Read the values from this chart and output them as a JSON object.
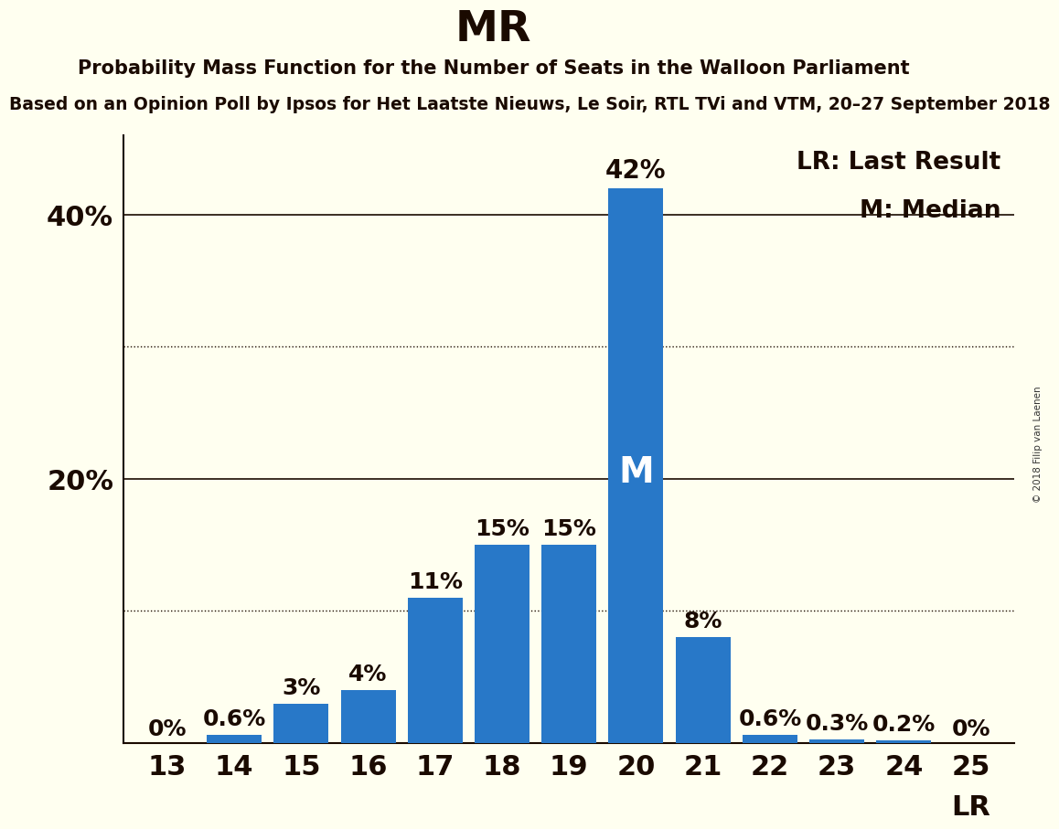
{
  "title": "MR",
  "subtitle": "Probability Mass Function for the Number of Seats in the Walloon Parliament",
  "subtitle2": "Based on an Opinion Poll by Ipsos for Het Laatste Nieuws, Le Soir, RTL TVi and VTM, 20–27 September 2018",
  "copyright": "© 2018 Filip van Laenen",
  "seats": [
    13,
    14,
    15,
    16,
    17,
    18,
    19,
    20,
    21,
    22,
    23,
    24,
    25
  ],
  "probabilities": [
    0.0,
    0.6,
    3.0,
    4.0,
    11.0,
    15.0,
    15.0,
    42.0,
    8.0,
    0.6,
    0.3,
    0.2,
    0.0
  ],
  "bar_color": "#2878C8",
  "background_color": "#FFFFF0",
  "median_seat": 20,
  "last_result_seat": 25,
  "legend_lr": "LR: Last Result",
  "legend_m": "M: Median",
  "ytick_positions": [
    20,
    40
  ],
  "ytick_labels": [
    "20%",
    "40%"
  ],
  "ymax": 46,
  "bar_labels": [
    "0%",
    "0.6%",
    "3%",
    "4%",
    "11%",
    "15%",
    "15%",
    "42%",
    "8%",
    "0.6%",
    "0.3%",
    "0.2%",
    "0%"
  ],
  "label_inside_idx": 7,
  "dotted_grid_values": [
    10,
    30
  ],
  "solid_grid_values": [
    20,
    40
  ],
  "text_color": "#1a0a00"
}
